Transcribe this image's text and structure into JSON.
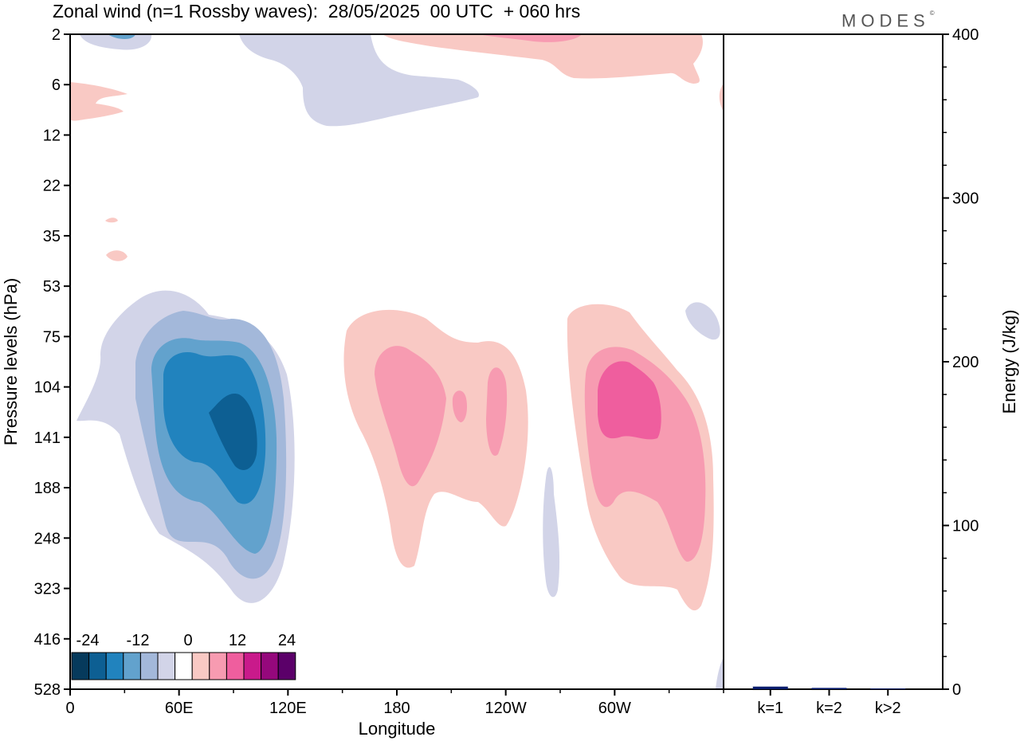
{
  "header": {
    "title": "Zonal wind (n=1 Rossby waves):  28/05/2025  00 UTC  + 060 hrs",
    "brand": "MODES",
    "brand_mark": "©"
  },
  "colors": {
    "contour_neg": [
      "#063a5c",
      "#0d5f93",
      "#2183be",
      "#62a2cd",
      "#a3b8da",
      "#d2d4e8"
    ],
    "contour_zero": "#ffffff",
    "contour_pos": [
      "#f9c9c4",
      "#f79bb1",
      "#ef5e9e",
      "#c91a8b",
      "#95087c",
      "#5b0069"
    ],
    "bar_fill": "#0a1d6e"
  },
  "chart_data": [
    {
      "type": "heatmap",
      "xlabel": "Longitude",
      "ylabel": "Pressure levels (hPa)",
      "x_ticks": [
        "0",
        "60E",
        "120E",
        "180",
        "120W",
        "60W"
      ],
      "x_tick_values": [
        0,
        60,
        120,
        180,
        240,
        300
      ],
      "xlim": [
        0,
        360
      ],
      "y_ticks": [
        "2",
        "6",
        "12",
        "22",
        "35",
        "53",
        "75",
        "104",
        "141",
        "188",
        "248",
        "323",
        "416",
        "528"
      ],
      "colorbar": {
        "tick_labels": [
          "-24",
          "-12",
          "0",
          "12",
          "24"
        ],
        "levels": [
          -30,
          -25,
          -20,
          -15,
          -10,
          -5,
          -2,
          2,
          5,
          10,
          15,
          20,
          25,
          30
        ]
      },
      "features": [
        {
          "sign": "negative",
          "lon": 90,
          "pressure_hPa": 141,
          "peak": -22
        },
        {
          "sign": "positive",
          "lon": 188,
          "pressure_hPa": 120,
          "peak": 9
        },
        {
          "sign": "positive",
          "lon": 238,
          "pressure_hPa": 120,
          "peak": 8
        },
        {
          "sign": "positive",
          "lon": 302,
          "pressure_hPa": 120,
          "peak": 14
        },
        {
          "sign": "negative",
          "lon": 150,
          "pressure_hPa": 4,
          "peak": -4
        },
        {
          "sign": "positive",
          "lon": 255,
          "pressure_hPa": 3,
          "peak": 8
        },
        {
          "sign": "negative",
          "lon": 264,
          "pressure_hPa": 250,
          "peak": -3
        }
      ]
    },
    {
      "type": "bar",
      "ylabel": "Energy (J/kg)",
      "categories": [
        "k=1",
        "k=2",
        "k>2"
      ],
      "values": [
        1.6,
        0.8,
        0.4
      ],
      "ylim": [
        0,
        400
      ],
      "y_ticks": [
        "0",
        "100",
        "200",
        "300",
        "400"
      ],
      "y_tick_values": [
        0,
        100,
        200,
        300,
        400
      ]
    }
  ]
}
